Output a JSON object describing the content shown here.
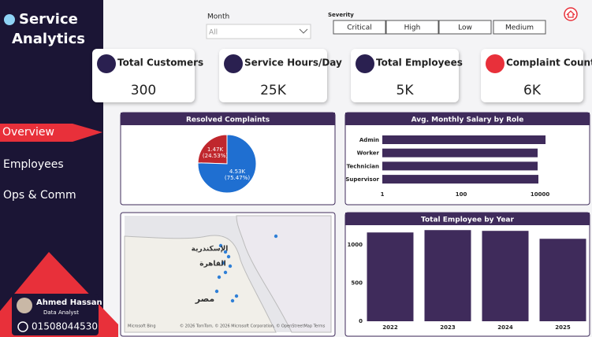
{
  "sidebar": {
    "title_line1": "Service",
    "title_line2": "Analytics",
    "nav": [
      "Overview",
      "Employees",
      "Ops & Comm"
    ],
    "profile": {
      "name": "Ahmed Hassan",
      "role": "Data Analyst",
      "phone": "01508044530"
    }
  },
  "filters": {
    "month_label": "Month",
    "month_value": "All",
    "severity_label": "Severity",
    "severity_options": [
      "Critical",
      "High",
      "Low",
      "Medium"
    ]
  },
  "kpis": [
    {
      "label": "Total Customers",
      "value": "300"
    },
    {
      "label": "Service Hours/Day",
      "value": "25K"
    },
    {
      "label": "Total Employees",
      "value": "5K"
    },
    {
      "label": "Complaint Count",
      "value": "6K"
    }
  ],
  "map": {
    "labels": [
      "الإسكندرية",
      "القاهرة",
      "مصر"
    ],
    "brand": "Microsoft Bing",
    "attribution": "© 2026 TomTom, © 2026 Microsoft Corporation, © OpenStreetMap Terms"
  },
  "chart_data": [
    {
      "type": "pie",
      "title": "Resolved Complaints",
      "values": [
        1470,
        4530
      ],
      "value_labels": [
        "1.47K",
        "4.53K"
      ],
      "percent_labels": [
        "(24.53%)",
        "(75.47%)"
      ],
      "colors": [
        "#c0272d",
        "#1f6fd1"
      ]
    },
    {
      "type": "hbar",
      "title": "Avg. Monthly Salary by Role",
      "categories": [
        "Admin",
        "Worker",
        "Technician",
        "Supervisor"
      ],
      "values": [
        13800,
        8700,
        8700,
        9100
      ],
      "color": "#3f2b5b",
      "log_scale": true,
      "xlim": [
        1,
        50000
      ],
      "xticks": [
        1,
        100,
        10000
      ]
    },
    {
      "type": "bar",
      "title": "Total Employee by Year",
      "categories": [
        "2022",
        "2023",
        "2024",
        "2025"
      ],
      "values": [
        1165,
        1196,
        1186,
        1082
      ],
      "color": "#3f2b5b",
      "ylim": [
        0,
        1250
      ],
      "yticks": [
        0,
        500,
        1000
      ]
    }
  ]
}
